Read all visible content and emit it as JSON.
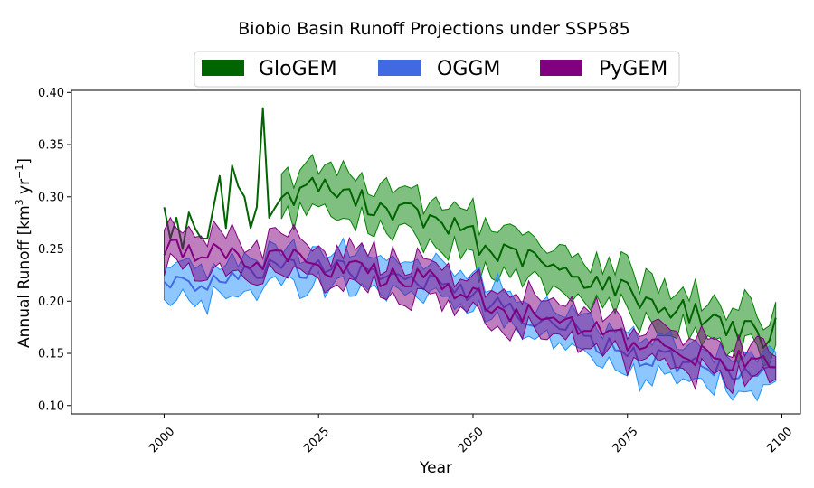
{
  "chart_data": {
    "type": "line",
    "title": "Biobio Basin Runoff Projections under SSP585",
    "xlabel": "Year",
    "ylabel": "Annual Runoff [km³ yr⁻¹]",
    "ylabel_parts": {
      "pre": "Annual Runoff [km",
      "sup1": "3",
      "mid": " yr",
      "sup2": "−1",
      "post": "]"
    },
    "xlim": [
      1985,
      2103
    ],
    "ylim": [
      0.092,
      0.402
    ],
    "xticks": [
      2000,
      2025,
      2050,
      2075,
      2100
    ],
    "yticks": [
      0.1,
      0.15,
      0.2,
      0.25,
      0.3,
      0.35,
      0.4
    ],
    "ytick_labels": [
      "0.10",
      "0.15",
      "0.20",
      "0.25",
      "0.30",
      "0.35",
      "0.40"
    ],
    "legend_position": "top-center, above plot",
    "grid": false,
    "series": [
      {
        "name": "GloGEM",
        "color": "#006400",
        "band_color": "#008000",
        "band_years": [
          2019,
          2099
        ],
        "knots": [
          [
            2000,
            0.29
          ],
          [
            2001,
            0.26
          ],
          [
            2002,
            0.28
          ],
          [
            2003,
            0.25
          ],
          [
            2004,
            0.285
          ],
          [
            2005,
            0.27
          ],
          [
            2006,
            0.26
          ],
          [
            2007,
            0.26
          ],
          [
            2008,
            0.29
          ],
          [
            2009,
            0.32
          ],
          [
            2010,
            0.27
          ],
          [
            2011,
            0.33
          ],
          [
            2012,
            0.31
          ],
          [
            2013,
            0.3
          ],
          [
            2014,
            0.27
          ],
          [
            2015,
            0.29
          ],
          [
            2016,
            0.385
          ],
          [
            2017,
            0.28
          ],
          [
            2019,
            0.3
          ],
          [
            2022,
            0.3
          ],
          [
            2023,
            0.32
          ],
          [
            2025,
            0.31
          ],
          [
            2030,
            0.3
          ],
          [
            2035,
            0.29
          ],
          [
            2040,
            0.285
          ],
          [
            2045,
            0.27
          ],
          [
            2050,
            0.27
          ],
          [
            2051,
            0.25
          ],
          [
            2055,
            0.245
          ],
          [
            2060,
            0.24
          ],
          [
            2065,
            0.225
          ],
          [
            2070,
            0.22
          ],
          [
            2075,
            0.21
          ],
          [
            2080,
            0.195
          ],
          [
            2085,
            0.19
          ],
          [
            2090,
            0.18
          ],
          [
            2095,
            0.17
          ],
          [
            2098,
            0.16
          ],
          [
            2099,
            0.175
          ]
        ]
      },
      {
        "name": "OGGM",
        "color": "#4169E1",
        "band_color": "#1E90FF",
        "band_years": [
          2000,
          2099
        ],
        "knots": [
          [
            2000,
            0.215
          ],
          [
            2005,
            0.22
          ],
          [
            2010,
            0.22
          ],
          [
            2015,
            0.23
          ],
          [
            2020,
            0.23
          ],
          [
            2025,
            0.235
          ],
          [
            2030,
            0.23
          ],
          [
            2035,
            0.225
          ],
          [
            2040,
            0.225
          ],
          [
            2045,
            0.215
          ],
          [
            2050,
            0.205
          ],
          [
            2055,
            0.195
          ],
          [
            2060,
            0.185
          ],
          [
            2065,
            0.175
          ],
          [
            2070,
            0.16
          ],
          [
            2075,
            0.15
          ],
          [
            2080,
            0.145
          ],
          [
            2085,
            0.14
          ],
          [
            2090,
            0.135
          ],
          [
            2095,
            0.13
          ],
          [
            2099,
            0.13
          ]
        ]
      },
      {
        "name": "PyGEM",
        "color": "#800080",
        "band_color": "#800080",
        "band_years": [
          2000,
          2099
        ],
        "knots": [
          [
            2000,
            0.255
          ],
          [
            2005,
            0.245
          ],
          [
            2010,
            0.245
          ],
          [
            2015,
            0.24
          ],
          [
            2020,
            0.24
          ],
          [
            2025,
            0.235
          ],
          [
            2030,
            0.23
          ],
          [
            2035,
            0.225
          ],
          [
            2040,
            0.225
          ],
          [
            2045,
            0.215
          ],
          [
            2050,
            0.205
          ],
          [
            2055,
            0.19
          ],
          [
            2060,
            0.185
          ],
          [
            2065,
            0.175
          ],
          [
            2070,
            0.17
          ],
          [
            2075,
            0.16
          ],
          [
            2080,
            0.155
          ],
          [
            2085,
            0.15
          ],
          [
            2090,
            0.145
          ],
          [
            2095,
            0.14
          ],
          [
            2099,
            0.14
          ]
        ]
      }
    ]
  }
}
